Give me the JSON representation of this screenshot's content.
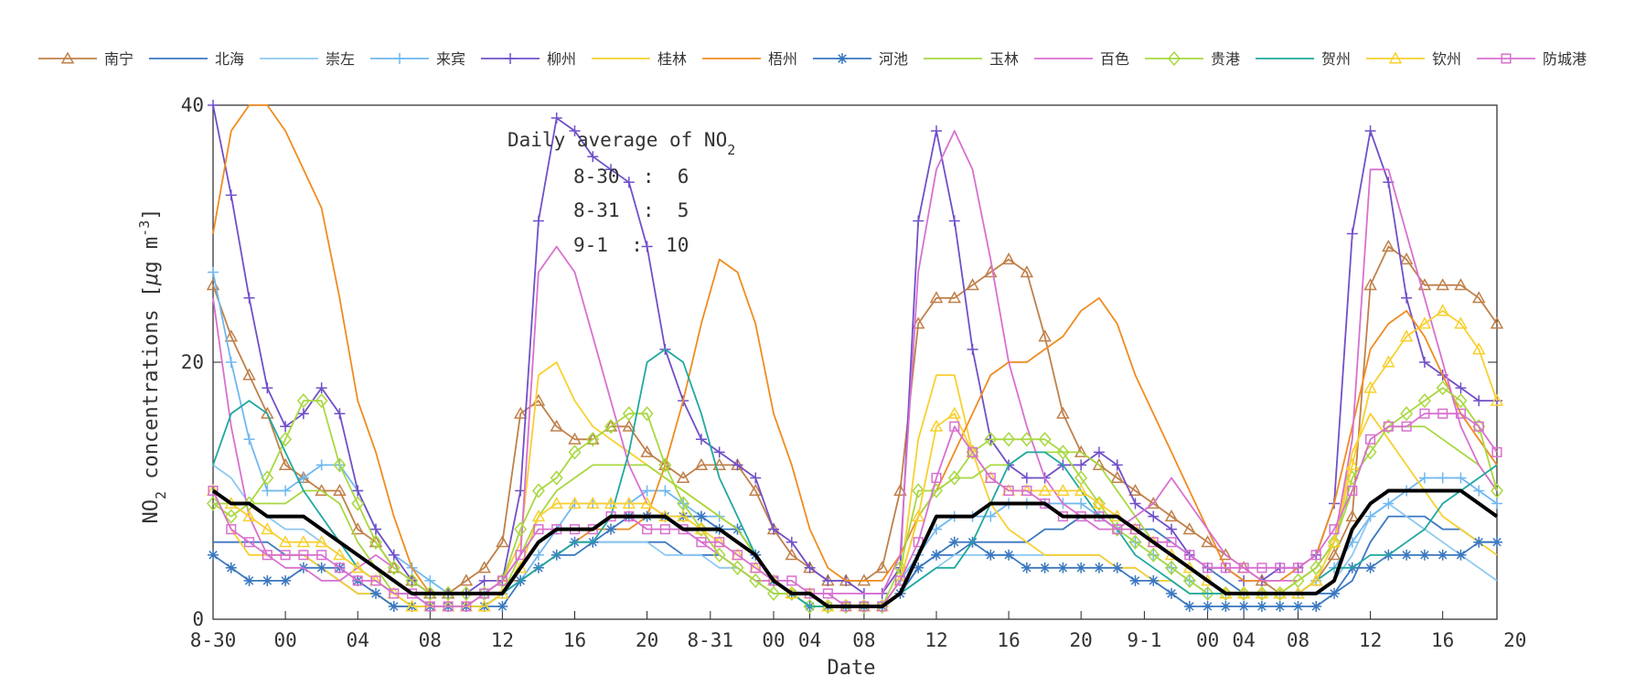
{
  "chart_data": {
    "type": "line",
    "xlabel": "Date",
    "ylabel_main": "NO",
    "ylabel_sub": "2",
    "ylabel_rest": " concentrations [",
    "ylabel_mu": "μ",
    "ylabel_unit": "g m",
    "ylabel_sup": "-3",
    "ylabel_close": "]",
    "ylim": [
      0,
      40
    ],
    "xlim": [
      0,
      71
    ],
    "yticks": [
      0,
      20,
      40
    ],
    "xticks": [
      {
        "x": 0,
        "label": "8-30"
      },
      {
        "x": 4,
        "label": "00"
      },
      {
        "x": 8,
        "label": "04"
      },
      {
        "x": 12,
        "label": "08"
      },
      {
        "x": 16,
        "label": "12"
      },
      {
        "x": 20,
        "label": "16"
      },
      {
        "x": 24,
        "label": "20"
      },
      {
        "x": 27.5,
        "label": "8-31"
      },
      {
        "x": 31,
        "label": "00"
      },
      {
        "x": 33,
        "label": "04"
      },
      {
        "x": 36,
        "label": "08"
      },
      {
        "x": 40,
        "label": "12"
      },
      {
        "x": 44,
        "label": "16"
      },
      {
        "x": 48,
        "label": "20"
      },
      {
        "x": 51.5,
        "label": "9-1"
      },
      {
        "x": 55,
        "label": "00"
      },
      {
        "x": 57,
        "label": "04"
      },
      {
        "x": 60,
        "label": "08"
      },
      {
        "x": 64,
        "label": "12"
      },
      {
        "x": 68,
        "label": "16"
      },
      {
        "x": 72,
        "label": "20"
      }
    ],
    "grid": false,
    "legend_position": "top",
    "annotation": {
      "title_main": "Daily average of NO",
      "title_sub": "2",
      "lines": [
        "8-30  :  6",
        "8-31  :  5",
        "9-1  :  10"
      ]
    },
    "series": [
      {
        "name": "南宁",
        "color": "#c0804a",
        "marker": "triangle",
        "values": [
          26,
          22,
          19,
          16,
          12,
          11,
          10,
          10,
          7,
          6,
          4,
          3,
          2,
          2,
          3,
          4,
          6,
          16,
          17,
          15,
          14,
          14,
          15,
          15,
          13,
          12,
          11,
          12,
          12,
          12,
          10,
          7,
          5,
          4,
          3,
          3,
          3,
          4,
          10,
          23,
          25,
          25,
          26,
          27,
          28,
          27,
          22,
          16,
          13,
          12,
          11,
          10,
          9,
          8,
          7,
          6,
          5,
          4,
          3,
          2,
          2,
          3,
          5,
          8,
          26,
          29,
          28,
          26,
          26,
          26,
          25,
          23
        ]
      },
      {
        "name": "北海",
        "color": "#3a78c0",
        "marker": "none",
        "values": [
          6,
          6,
          6,
          6,
          5,
          5,
          4,
          3,
          2,
          2,
          1,
          1,
          1,
          1,
          1,
          1,
          2,
          3,
          4,
          5,
          5,
          6,
          6,
          6,
          6,
          6,
          5,
          5,
          5,
          4,
          3,
          2,
          2,
          1,
          1,
          1,
          1,
          1,
          2,
          4,
          5,
          5,
          6,
          6,
          6,
          6,
          7,
          7,
          8,
          8,
          8,
          7,
          7,
          6,
          5,
          4,
          3,
          2,
          2,
          2,
          2,
          2,
          2,
          3,
          6,
          8,
          8,
          8,
          7,
          7,
          6,
          6
        ]
      },
      {
        "name": "崇左",
        "color": "#8ec8f0",
        "marker": "none",
        "values": [
          12,
          11,
          9,
          8,
          7,
          7,
          6,
          5,
          4,
          3,
          2,
          2,
          1,
          1,
          1,
          2,
          2,
          3,
          4,
          5,
          6,
          6,
          6,
          6,
          6,
          5,
          5,
          5,
          4,
          4,
          3,
          2,
          2,
          1,
          1,
          1,
          1,
          1,
          2,
          3,
          4,
          5,
          5,
          5,
          5,
          5,
          5,
          5,
          5,
          5,
          4,
          4,
          3,
          3,
          2,
          2,
          2,
          2,
          2,
          2,
          2,
          2,
          3,
          5,
          8,
          9,
          8,
          7,
          6,
          5,
          4,
          3
        ]
      },
      {
        "name": "来宾",
        "color": "#70b8f0",
        "marker": "plus",
        "values": [
          27,
          20,
          14,
          10,
          10,
          11,
          12,
          12,
          10,
          7,
          5,
          4,
          3,
          2,
          2,
          2,
          2,
          3,
          5,
          7,
          9,
          9,
          9,
          9,
          10,
          10,
          9,
          8,
          8,
          7,
          5,
          3,
          2,
          2,
          1,
          1,
          1,
          1,
          3,
          5,
          7,
          8,
          8,
          8,
          9,
          9,
          9,
          9,
          9,
          8,
          7,
          6,
          5,
          4,
          3,
          2,
          2,
          2,
          2,
          2,
          2,
          3,
          4,
          6,
          8,
          9,
          10,
          11,
          11,
          11,
          10,
          9
        ]
      },
      {
        "name": "柳州",
        "color": "#7050c8",
        "marker": "plus",
        "values": [
          40,
          33,
          25,
          18,
          15,
          16,
          18,
          16,
          10,
          7,
          5,
          3,
          2,
          2,
          2,
          3,
          3,
          10,
          31,
          39,
          38,
          36,
          35,
          34,
          29,
          21,
          17,
          14,
          13,
          12,
          11,
          7,
          6,
          4,
          3,
          3,
          2,
          2,
          4,
          31,
          38,
          31,
          21,
          14,
          12,
          11,
          11,
          12,
          12,
          13,
          12,
          9,
          8,
          7,
          5,
          4,
          4,
          3,
          3,
          4,
          4,
          5,
          9,
          30,
          38,
          34,
          25,
          20,
          19,
          18,
          17,
          17
        ]
      },
      {
        "name": "桂林",
        "color": "#f8d030",
        "marker": "none",
        "values": [
          10,
          7,
          5,
          5,
          5,
          5,
          4,
          3,
          2,
          2,
          1,
          1,
          1,
          1,
          1,
          2,
          3,
          6,
          19,
          20,
          17,
          15,
          14,
          13,
          12,
          11,
          10,
          9,
          8,
          7,
          5,
          3,
          2,
          1,
          1,
          1,
          1,
          1,
          3,
          14,
          19,
          19,
          13,
          9,
          7,
          6,
          5,
          5,
          5,
          5,
          4,
          4,
          3,
          3,
          2,
          2,
          2,
          2,
          2,
          2,
          3,
          4,
          6,
          13,
          16,
          14,
          12,
          10,
          8,
          7,
          6,
          5
        ]
      },
      {
        "name": "梧州",
        "color": "#f08c20",
        "marker": "none",
        "values": [
          30,
          38,
          40,
          40,
          38,
          35,
          32,
          25,
          17,
          13,
          8,
          4,
          2,
          2,
          2,
          2,
          3,
          3,
          4,
          5,
          6,
          7,
          7,
          7,
          8,
          12,
          17,
          23,
          28,
          27,
          23,
          16,
          12,
          7,
          4,
          3,
          3,
          3,
          5,
          8,
          10,
          13,
          16,
          19,
          20,
          20,
          21,
          22,
          24,
          25,
          23,
          19,
          16,
          13,
          10,
          7,
          4,
          3,
          3,
          3,
          4,
          5,
          9,
          15,
          21,
          23,
          24,
          22,
          19,
          16,
          14,
          12
        ]
      },
      {
        "name": "河池",
        "color": "#3a78c0",
        "marker": "star",
        "values": [
          5,
          4,
          3,
          3,
          3,
          4,
          4,
          4,
          3,
          2,
          1,
          1,
          1,
          1,
          1,
          1,
          1,
          3,
          4,
          5,
          6,
          6,
          7,
          8,
          8,
          8,
          8,
          8,
          7,
          7,
          5,
          3,
          2,
          1,
          1,
          1,
          1,
          1,
          2,
          4,
          5,
          6,
          6,
          5,
          5,
          4,
          4,
          4,
          4,
          4,
          4,
          3,
          3,
          2,
          1,
          1,
          1,
          1,
          1,
          1,
          1,
          1,
          2,
          4,
          4,
          5,
          5,
          5,
          5,
          5,
          6,
          6
        ]
      },
      {
        "name": "玉林",
        "color": "#a8d840",
        "marker": "none",
        "values": [
          9,
          9,
          9,
          9,
          9,
          10,
          10,
          9,
          6,
          4,
          2,
          1,
          1,
          1,
          1,
          1,
          2,
          5,
          8,
          10,
          11,
          12,
          12,
          12,
          12,
          11,
          10,
          9,
          8,
          7,
          5,
          3,
          2,
          1,
          1,
          1,
          1,
          1,
          3,
          8,
          10,
          11,
          11,
          12,
          12,
          13,
          13,
          13,
          13,
          12,
          10,
          8,
          6,
          5,
          4,
          3,
          2,
          2,
          2,
          2,
          3,
          4,
          6,
          10,
          14,
          15,
          15,
          15,
          14,
          13,
          12,
          10
        ]
      },
      {
        "name": "百色",
        "color": "#d870d0",
        "marker": "none",
        "values": [
          25,
          15,
          8,
          5,
          4,
          4,
          3,
          3,
          4,
          5,
          4,
          3,
          2,
          2,
          2,
          2,
          3,
          5,
          27,
          29,
          27,
          22,
          17,
          12,
          9,
          8,
          7,
          6,
          5,
          4,
          3,
          3,
          2,
          2,
          2,
          2,
          2,
          2,
          5,
          27,
          35,
          38,
          35,
          28,
          20,
          15,
          11,
          9,
          8,
          7,
          7,
          8,
          9,
          11,
          9,
          7,
          5,
          4,
          3,
          3,
          3,
          4,
          6,
          14,
          35,
          35,
          30,
          25,
          20,
          15,
          12,
          10
        ]
      },
      {
        "name": "贵港",
        "color": "#a8d840",
        "marker": "diamond",
        "values": [
          9,
          8,
          9,
          11,
          14,
          17,
          17,
          12,
          9,
          6,
          4,
          3,
          2,
          2,
          2,
          2,
          3,
          7,
          10,
          11,
          13,
          14,
          15,
          16,
          16,
          12,
          9,
          7,
          5,
          4,
          3,
          2,
          2,
          1,
          1,
          1,
          1,
          1,
          4,
          10,
          10,
          11,
          13,
          14,
          14,
          14,
          14,
          13,
          11,
          9,
          7,
          6,
          5,
          4,
          3,
          2,
          2,
          2,
          2,
          2,
          3,
          4,
          6,
          11,
          13,
          15,
          16,
          17,
          18,
          17,
          15,
          10
        ]
      },
      {
        "name": "贺州",
        "color": "#20a8a0",
        "marker": "none",
        "values": [
          12,
          16,
          17,
          16,
          13,
          10,
          8,
          6,
          4,
          3,
          2,
          2,
          1,
          1,
          1,
          1,
          2,
          3,
          4,
          5,
          6,
          6,
          8,
          13,
          20,
          21,
          20,
          16,
          11,
          8,
          5,
          3,
          2,
          1,
          1,
          1,
          1,
          1,
          2,
          3,
          4,
          4,
          6,
          9,
          12,
          13,
          13,
          12,
          10,
          8,
          7,
          5,
          4,
          3,
          2,
          2,
          2,
          2,
          2,
          2,
          2,
          3,
          4,
          4,
          5,
          5,
          6,
          7,
          9,
          10,
          11,
          12
        ]
      },
      {
        "name": "钦州",
        "color": "#f8d030",
        "marker": "triangle",
        "values": [
          10,
          9,
          8,
          7,
          6,
          6,
          6,
          5,
          4,
          3,
          2,
          1,
          1,
          1,
          1,
          1,
          2,
          4,
          8,
          9,
          9,
          9,
          9,
          9,
          9,
          8,
          8,
          7,
          6,
          5,
          4,
          3,
          2,
          2,
          1,
          1,
          1,
          1,
          3,
          8,
          15,
          16,
          13,
          11,
          10,
          10,
          10,
          10,
          10,
          9,
          8,
          7,
          6,
          5,
          4,
          3,
          2,
          2,
          2,
          2,
          2,
          3,
          6,
          12,
          18,
          20,
          22,
          23,
          24,
          23,
          21,
          17
        ]
      },
      {
        "name": "防城港",
        "color": "#d870d0",
        "marker": "square",
        "values": [
          10,
          7,
          6,
          5,
          5,
          5,
          5,
          4,
          3,
          3,
          2,
          2,
          1,
          1,
          1,
          2,
          3,
          5,
          7,
          7,
          7,
          7,
          8,
          8,
          7,
          7,
          7,
          6,
          6,
          5,
          4,
          3,
          3,
          2,
          2,
          1,
          1,
          1,
          3,
          6,
          11,
          15,
          13,
          11,
          10,
          10,
          9,
          8,
          8,
          8,
          7,
          7,
          6,
          6,
          5,
          4,
          4,
          4,
          4,
          4,
          4,
          5,
          7,
          10,
          14,
          15,
          15,
          16,
          16,
          16,
          15,
          13
        ]
      },
      {
        "values": [
          10,
          9,
          9,
          8,
          8,
          8,
          7,
          6,
          5,
          4,
          3,
          2,
          2,
          2,
          2,
          2,
          2,
          4,
          6,
          7,
          7,
          7,
          8,
          8,
          8,
          8,
          7,
          7,
          7,
          6,
          5,
          3,
          2,
          2,
          1,
          1,
          1,
          1,
          2,
          5,
          8,
          8,
          8,
          9,
          9,
          9,
          9,
          8,
          8,
          8,
          8,
          7,
          6,
          5,
          4,
          3,
          2,
          2,
          2,
          2,
          2,
          2,
          3,
          7,
          9,
          10,
          10,
          10,
          10,
          10,
          9,
          8
        ],
        "color": "#000000",
        "marker": "none",
        "bold": true
      }
    ]
  }
}
